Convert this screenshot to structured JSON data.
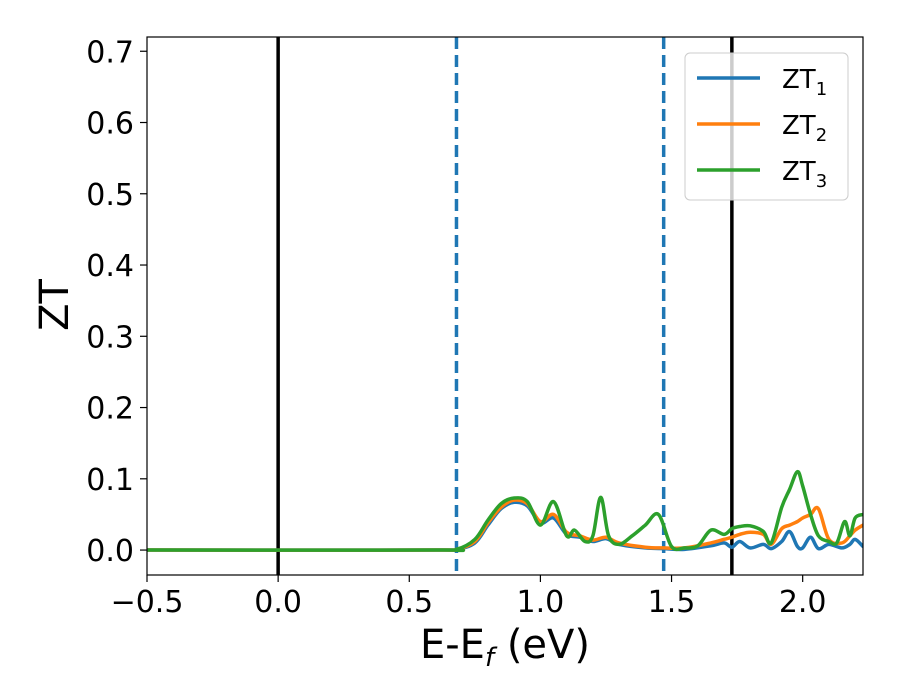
{
  "chart_data": {
    "type": "line",
    "xlabel": "E-E",
    "xlabel_sub": "f",
    "xlabel_unit": " (eV)",
    "ylabel": "ZT",
    "xlim": [
      -0.5,
      2.23
    ],
    "ylim": [
      -0.035,
      0.72
    ],
    "xticks": [
      -0.5,
      0.0,
      0.5,
      1.0,
      1.5,
      2.0
    ],
    "xtick_labels": [
      "−0.5",
      "0.0",
      "0.5",
      "1.0",
      "1.5",
      "2.0"
    ],
    "yticks": [
      0.0,
      0.1,
      0.2,
      0.3,
      0.4,
      0.5,
      0.6,
      0.7
    ],
    "ytick_labels": [
      "0.0",
      "0.1",
      "0.2",
      "0.3",
      "0.4",
      "0.5",
      "0.6",
      "0.7"
    ],
    "grid": false,
    "legend_position": "top-right",
    "vlines": [
      {
        "x": 0.0,
        "style": "solid",
        "color": "#000000"
      },
      {
        "x": 0.68,
        "style": "dashed",
        "color": "#1f77b4"
      },
      {
        "x": 1.47,
        "style": "dashed",
        "color": "#1f77b4"
      },
      {
        "x": 1.73,
        "style": "solid",
        "color": "#000000"
      }
    ],
    "series": [
      {
        "name": "ZT",
        "name_sub": "1",
        "color": "#1f77b4",
        "x": [
          -0.5,
          0.6,
          0.68,
          0.75,
          0.8,
          0.85,
          0.9,
          0.95,
          1.0,
          1.05,
          1.1,
          1.15,
          1.2,
          1.25,
          1.3,
          1.4,
          1.47,
          1.55,
          1.65,
          1.7,
          1.73,
          1.76,
          1.8,
          1.85,
          1.88,
          1.92,
          1.95,
          1.98,
          2.0,
          2.03,
          2.06,
          2.1,
          2.15,
          2.18,
          2.2,
          2.23
        ],
        "y": [
          0.0,
          0.0,
          0.001,
          0.01,
          0.035,
          0.058,
          0.067,
          0.062,
          0.038,
          0.045,
          0.022,
          0.018,
          0.012,
          0.016,
          0.008,
          0.003,
          0.002,
          0.001,
          0.006,
          0.01,
          0.004,
          0.012,
          0.003,
          0.008,
          0.002,
          0.012,
          0.026,
          0.005,
          0.003,
          0.018,
          0.002,
          0.008,
          0.003,
          0.008,
          0.015,
          0.005
        ]
      },
      {
        "name": "ZT",
        "name_sub": "2",
        "color": "#ff7f0e",
        "x": [
          -0.5,
          0.6,
          0.68,
          0.75,
          0.8,
          0.85,
          0.9,
          0.95,
          1.0,
          1.05,
          1.1,
          1.15,
          1.2,
          1.25,
          1.3,
          1.4,
          1.47,
          1.55,
          1.65,
          1.7,
          1.73,
          1.76,
          1.8,
          1.85,
          1.88,
          1.92,
          1.95,
          1.98,
          2.0,
          2.03,
          2.06,
          2.1,
          2.15,
          2.18,
          2.2,
          2.23
        ],
        "y": [
          0.0,
          0.0,
          0.001,
          0.012,
          0.038,
          0.06,
          0.07,
          0.065,
          0.04,
          0.05,
          0.025,
          0.02,
          0.014,
          0.018,
          0.01,
          0.004,
          0.003,
          0.003,
          0.01,
          0.015,
          0.018,
          0.022,
          0.025,
          0.022,
          0.008,
          0.03,
          0.035,
          0.04,
          0.045,
          0.05,
          0.058,
          0.015,
          0.01,
          0.02,
          0.028,
          0.035
        ]
      },
      {
        "name": "ZT",
        "name_sub": "3",
        "color": "#2ca02c",
        "x": [
          -0.5,
          0.6,
          0.68,
          0.75,
          0.8,
          0.85,
          0.9,
          0.95,
          1.0,
          1.05,
          1.1,
          1.13,
          1.17,
          1.2,
          1.23,
          1.26,
          1.3,
          1.35,
          1.4,
          1.45,
          1.5,
          1.55,
          1.6,
          1.65,
          1.7,
          1.73,
          1.76,
          1.8,
          1.85,
          1.88,
          1.92,
          1.95,
          1.98,
          2.0,
          2.03,
          2.06,
          2.1,
          2.13,
          2.16,
          2.18,
          2.2,
          2.23
        ],
        "y": [
          0.0,
          0.0,
          0.001,
          0.015,
          0.042,
          0.065,
          0.073,
          0.068,
          0.035,
          0.068,
          0.02,
          0.028,
          0.012,
          0.02,
          0.074,
          0.02,
          0.008,
          0.02,
          0.035,
          0.05,
          0.005,
          0.003,
          0.006,
          0.028,
          0.022,
          0.03,
          0.033,
          0.034,
          0.026,
          0.01,
          0.06,
          0.085,
          0.11,
          0.09,
          0.05,
          0.02,
          0.012,
          0.01,
          0.04,
          0.02,
          0.045,
          0.05
        ]
      }
    ]
  }
}
